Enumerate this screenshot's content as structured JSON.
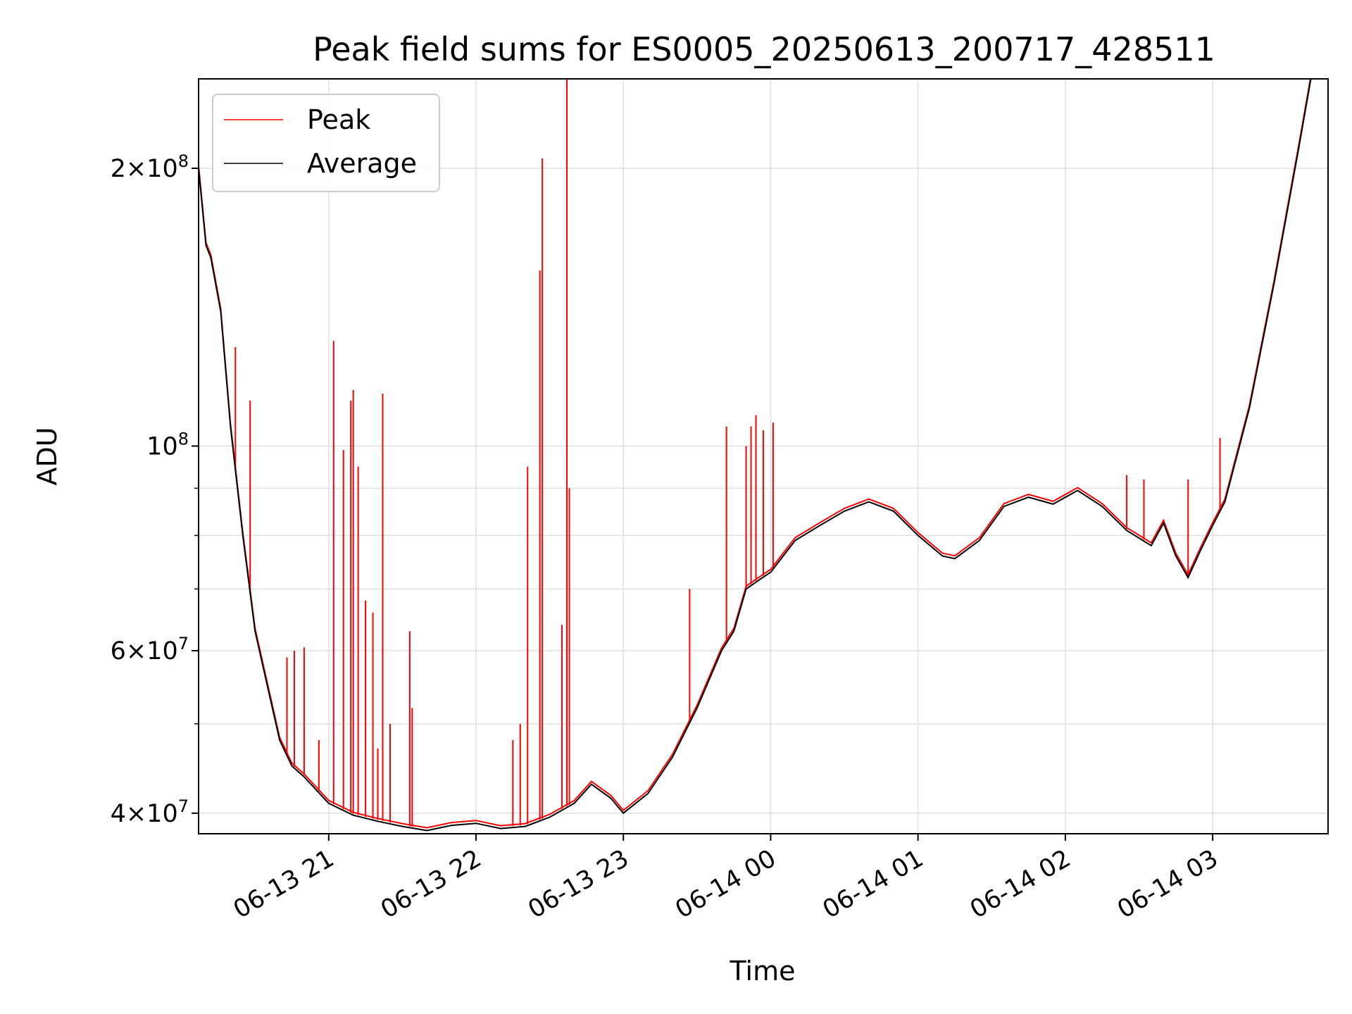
{
  "chart_data": {
    "type": "line",
    "title": "Peak field sums for ES0005_20250613_200717_428511",
    "xlabel": "Time",
    "ylabel": "ADU",
    "y_scale": "log",
    "grid": true,
    "legend_position": "top-left",
    "xlim": [
      "2025-06-13 20:07",
      "2025-06-14 03:47"
    ],
    "ylim": [
      38000000,
      250000000
    ],
    "x_ticks": [
      {
        "value": "2025-06-13 21:00",
        "label": "06-13 21"
      },
      {
        "value": "2025-06-13 22:00",
        "label": "06-13 22"
      },
      {
        "value": "2025-06-13 23:00",
        "label": "06-13 23"
      },
      {
        "value": "2025-06-14 00:00",
        "label": "06-14 00"
      },
      {
        "value": "2025-06-14 01:00",
        "label": "06-14 01"
      },
      {
        "value": "2025-06-14 02:00",
        "label": "06-14 02"
      },
      {
        "value": "2025-06-14 03:00",
        "label": "06-14 03"
      }
    ],
    "y_ticks": [
      {
        "value": 40000000,
        "base": "4",
        "exp": "7"
      },
      {
        "value": 60000000,
        "base": "6",
        "exp": "7"
      },
      {
        "value": 100000000,
        "base": "",
        "exp": "8"
      },
      {
        "value": 200000000,
        "base": "2",
        "exp": "8"
      }
    ],
    "y_minor_ticks": [
      50000000,
      70000000,
      80000000,
      90000000
    ],
    "series": [
      {
        "name": "Average",
        "color": "#000000",
        "points": [
          [
            "2025-06-13 20:07",
            200000000
          ],
          [
            "2025-06-13 20:10",
            165000000
          ],
          [
            "2025-06-13 20:12",
            160000000
          ],
          [
            "2025-06-13 20:16",
            140000000
          ],
          [
            "2025-06-13 20:20",
            105000000
          ],
          [
            "2025-06-13 20:25",
            80000000
          ],
          [
            "2025-06-13 20:30",
            63000000
          ],
          [
            "2025-06-13 20:35",
            55000000
          ],
          [
            "2025-06-13 20:40",
            48000000
          ],
          [
            "2025-06-13 20:45",
            45000000
          ],
          [
            "2025-06-13 20:50",
            43800000
          ],
          [
            "2025-06-13 21:00",
            41000000
          ],
          [
            "2025-06-13 21:10",
            39800000
          ],
          [
            "2025-06-13 21:20",
            39200000
          ],
          [
            "2025-06-13 21:30",
            38700000
          ],
          [
            "2025-06-13 21:40",
            38300000
          ],
          [
            "2025-06-13 21:50",
            38800000
          ],
          [
            "2025-06-13 22:00",
            39000000
          ],
          [
            "2025-06-13 22:10",
            38500000
          ],
          [
            "2025-06-13 22:20",
            38700000
          ],
          [
            "2025-06-13 22:30",
            39600000
          ],
          [
            "2025-06-13 22:40",
            41000000
          ],
          [
            "2025-06-13 22:47",
            43000000
          ],
          [
            "2025-06-13 22:55",
            41500000
          ],
          [
            "2025-06-13 23:00",
            40000000
          ],
          [
            "2025-06-13 23:10",
            42000000
          ],
          [
            "2025-06-13 23:20",
            46000000
          ],
          [
            "2025-06-13 23:30",
            52000000
          ],
          [
            "2025-06-13 23:40",
            60000000
          ],
          [
            "2025-06-13 23:45",
            63000000
          ],
          [
            "2025-06-13 23:50",
            70000000
          ],
          [
            "2025-06-13 23:55",
            71500000
          ],
          [
            "2025-06-14 00:00",
            73000000
          ],
          [
            "2025-06-14 00:10",
            79000000
          ],
          [
            "2025-06-14 00:20",
            82000000
          ],
          [
            "2025-06-14 00:30",
            85000000
          ],
          [
            "2025-06-14 00:40",
            87000000
          ],
          [
            "2025-06-14 00:50",
            85000000
          ],
          [
            "2025-06-14 01:00",
            80000000
          ],
          [
            "2025-06-14 01:10",
            76000000
          ],
          [
            "2025-06-14 01:15",
            75500000
          ],
          [
            "2025-06-14 01:25",
            79000000
          ],
          [
            "2025-06-14 01:35",
            86000000
          ],
          [
            "2025-06-14 01:45",
            88000000
          ],
          [
            "2025-06-14 01:55",
            86500000
          ],
          [
            "2025-06-14 02:05",
            89500000
          ],
          [
            "2025-06-14 02:15",
            86000000
          ],
          [
            "2025-06-14 02:25",
            81000000
          ],
          [
            "2025-06-14 02:35",
            78000000
          ],
          [
            "2025-06-14 02:40",
            82500000
          ],
          [
            "2025-06-14 02:45",
            76000000
          ],
          [
            "2025-06-14 02:50",
            72000000
          ],
          [
            "2025-06-14 02:55",
            77000000
          ],
          [
            "2025-06-14 03:00",
            82000000
          ],
          [
            "2025-06-14 03:05",
            87000000
          ],
          [
            "2025-06-14 03:15",
            110000000
          ],
          [
            "2025-06-14 03:25",
            150000000
          ],
          [
            "2025-06-14 03:35",
            210000000
          ],
          [
            "2025-06-14 03:40",
            250000000
          ]
        ]
      },
      {
        "name": "Peak",
        "color": "#ff0000",
        "spikes": [
          [
            "2025-06-13 20:22",
            128000000
          ],
          [
            "2025-06-13 20:28",
            112000000
          ],
          [
            "2025-06-13 20:43",
            59000000
          ],
          [
            "2025-06-13 20:46",
            60000000
          ],
          [
            "2025-06-13 20:50",
            60500000
          ],
          [
            "2025-06-13 20:56",
            48000000
          ],
          [
            "2025-06-13 21:02",
            130000000
          ],
          [
            "2025-06-13 21:06",
            99000000
          ],
          [
            "2025-06-13 21:09",
            112000000
          ],
          [
            "2025-06-13 21:10",
            115000000
          ],
          [
            "2025-06-13 21:12",
            95000000
          ],
          [
            "2025-06-13 21:15",
            68000000
          ],
          [
            "2025-06-13 21:18",
            66000000
          ],
          [
            "2025-06-13 21:20",
            47000000
          ],
          [
            "2025-06-13 21:22",
            114000000
          ],
          [
            "2025-06-13 21:25",
            50000000
          ],
          [
            "2025-06-13 21:33",
            63000000
          ],
          [
            "2025-06-13 21:34",
            52000000
          ],
          [
            "2025-06-13 22:15",
            48000000
          ],
          [
            "2025-06-13 22:18",
            50000000
          ],
          [
            "2025-06-13 22:21",
            95000000
          ],
          [
            "2025-06-13 22:26",
            155000000
          ],
          [
            "2025-06-13 22:27",
            205000000
          ],
          [
            "2025-06-13 22:35",
            64000000
          ],
          [
            "2025-06-13 22:37",
            250000000
          ],
          [
            "2025-06-13 22:38",
            90000000
          ],
          [
            "2025-06-13 23:27",
            70000000
          ],
          [
            "2025-06-13 23:42",
            105000000
          ],
          [
            "2025-06-13 23:50",
            100000000
          ],
          [
            "2025-06-13 23:52",
            105000000
          ],
          [
            "2025-06-13 23:54",
            108000000
          ],
          [
            "2025-06-13 23:57",
            104000000
          ],
          [
            "2025-06-14 00:01",
            106000000
          ],
          [
            "2025-06-14 02:25",
            93000000
          ],
          [
            "2025-06-14 02:32",
            92000000
          ],
          [
            "2025-06-14 02:50",
            92000000
          ],
          [
            "2025-06-14 03:03",
            102000000
          ]
        ]
      }
    ]
  }
}
